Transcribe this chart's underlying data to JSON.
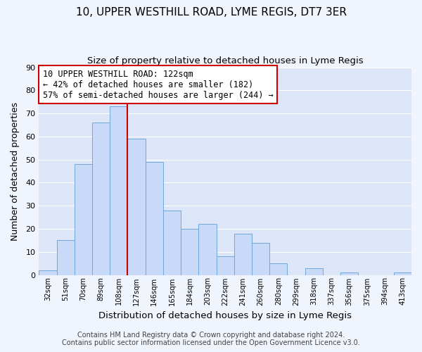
{
  "title": "10, UPPER WESTHILL ROAD, LYME REGIS, DT7 3ER",
  "subtitle": "Size of property relative to detached houses in Lyme Regis",
  "xlabel": "Distribution of detached houses by size in Lyme Regis",
  "ylabel": "Number of detached properties",
  "bar_labels": [
    "32sqm",
    "51sqm",
    "70sqm",
    "89sqm",
    "108sqm",
    "127sqm",
    "146sqm",
    "165sqm",
    "184sqm",
    "203sqm",
    "222sqm",
    "241sqm",
    "260sqm",
    "280sqm",
    "299sqm",
    "318sqm",
    "337sqm",
    "356sqm",
    "375sqm",
    "394sqm",
    "413sqm"
  ],
  "bar_values": [
    2,
    15,
    48,
    66,
    73,
    59,
    49,
    28,
    20,
    22,
    8,
    18,
    14,
    5,
    0,
    3,
    0,
    1,
    0,
    0,
    1
  ],
  "bar_color": "#c9daf8",
  "bar_edge_color": "#6fa8dc",
  "grid_color": "#ffffff",
  "bg_color": "#dce6f8",
  "fig_bg_color": "#f0f4fc",
  "ylim": [
    0,
    90
  ],
  "yticks": [
    0,
    10,
    20,
    30,
    40,
    50,
    60,
    70,
    80,
    90
  ],
  "annotation_box_text": "10 UPPER WESTHILL ROAD: 122sqm\n← 42% of detached houses are smaller (182)\n57% of semi-detached houses are larger (244) →",
  "vline_x_index": 4.5,
  "vline_color": "#cc0000",
  "footer_line1": "Contains HM Land Registry data © Crown copyright and database right 2024.",
  "footer_line2": "Contains public sector information licensed under the Open Government Licence v3.0.",
  "title_fontsize": 11,
  "subtitle_fontsize": 9.5,
  "xlabel_fontsize": 9.5,
  "ylabel_fontsize": 9,
  "annotation_fontsize": 8.5,
  "footer_fontsize": 7
}
